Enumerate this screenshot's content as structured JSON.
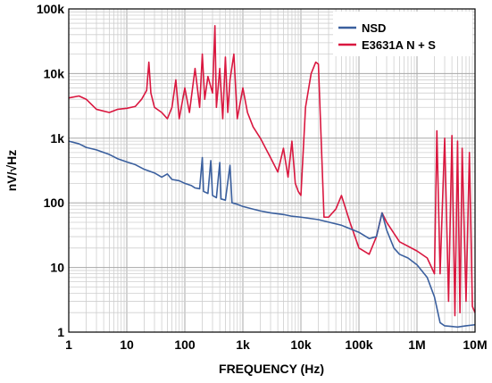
{
  "chart_data": {
    "type": "line",
    "xlabel": "FREQUENCY (Hz)",
    "ylabel": "nV/√Hz",
    "xscale": "log",
    "yscale": "log",
    "xlim": [
      1,
      10000000
    ],
    "ylim": [
      1,
      100000
    ],
    "grid": true,
    "legend_position": "top-right",
    "x_ticks": [
      {
        "value": 1,
        "label": "1"
      },
      {
        "value": 10,
        "label": "10"
      },
      {
        "value": 100,
        "label": "100"
      },
      {
        "value": 1000,
        "label": "1k"
      },
      {
        "value": 10000,
        "label": "10k"
      },
      {
        "value": 100000,
        "label": "100k"
      },
      {
        "value": 1000000,
        "label": "1M"
      },
      {
        "value": 10000000,
        "label": "10M"
      }
    ],
    "y_ticks": [
      {
        "value": 1,
        "label": "1"
      },
      {
        "value": 10,
        "label": "10"
      },
      {
        "value": 100,
        "label": "100"
      },
      {
        "value": 1000,
        "label": "1k"
      },
      {
        "value": 10000,
        "label": "10k"
      },
      {
        "value": 100000,
        "label": "100k"
      }
    ],
    "series": [
      {
        "name": "NSD",
        "color": "#3a5f9e",
        "points": [
          [
            1,
            900
          ],
          [
            1.5,
            820
          ],
          [
            2,
            720
          ],
          [
            3,
            660
          ],
          [
            5,
            560
          ],
          [
            7,
            480
          ],
          [
            10,
            430
          ],
          [
            14,
            390
          ],
          [
            20,
            330
          ],
          [
            30,
            290
          ],
          [
            40,
            250
          ],
          [
            50,
            280
          ],
          [
            60,
            230
          ],
          [
            80,
            220
          ],
          [
            100,
            200
          ],
          [
            130,
            185
          ],
          [
            150,
            170
          ],
          [
            180,
            165
          ],
          [
            200,
            500
          ],
          [
            210,
            150
          ],
          [
            250,
            140
          ],
          [
            280,
            450
          ],
          [
            300,
            130
          ],
          [
            350,
            120
          ],
          [
            400,
            420
          ],
          [
            420,
            115
          ],
          [
            500,
            110
          ],
          [
            600,
            380
          ],
          [
            650,
            100
          ],
          [
            800,
            95
          ],
          [
            1000,
            88
          ],
          [
            1500,
            80
          ],
          [
            2000,
            75
          ],
          [
            3000,
            70
          ],
          [
            5000,
            66
          ],
          [
            7000,
            62
          ],
          [
            10000,
            60
          ],
          [
            20000,
            55
          ],
          [
            50000,
            45
          ],
          [
            100000,
            35
          ],
          [
            150000,
            28
          ],
          [
            200000,
            30
          ],
          [
            250000,
            70
          ],
          [
            300000,
            38
          ],
          [
            400000,
            20
          ],
          [
            500000,
            16
          ],
          [
            700000,
            14
          ],
          [
            1000000,
            11
          ],
          [
            1500000,
            7
          ],
          [
            2000000,
            3.5
          ],
          [
            2500000,
            1.4
          ],
          [
            3000000,
            1.25
          ],
          [
            5000000,
            1.2
          ],
          [
            7000000,
            1.25
          ],
          [
            10000000,
            1.3
          ]
        ]
      },
      {
        "name": "E3631A N + S",
        "color": "#d9173f",
        "points": [
          [
            1,
            4200
          ],
          [
            1.5,
            4500
          ],
          [
            2,
            4000
          ],
          [
            3,
            2800
          ],
          [
            5,
            2500
          ],
          [
            7,
            2800
          ],
          [
            10,
            2900
          ],
          [
            14,
            3100
          ],
          [
            18,
            4000
          ],
          [
            22,
            5500
          ],
          [
            24,
            15000
          ],
          [
            26,
            5000
          ],
          [
            30,
            3000
          ],
          [
            40,
            2500
          ],
          [
            50,
            2000
          ],
          [
            60,
            3000
          ],
          [
            70,
            8000
          ],
          [
            80,
            2000
          ],
          [
            100,
            6000
          ],
          [
            120,
            2500
          ],
          [
            150,
            12000
          ],
          [
            180,
            3000
          ],
          [
            200,
            20000
          ],
          [
            220,
            4000
          ],
          [
            250,
            9000
          ],
          [
            300,
            5000
          ],
          [
            330,
            55000
          ],
          [
            350,
            3000
          ],
          [
            400,
            12000
          ],
          [
            450,
            2000
          ],
          [
            500,
            18000
          ],
          [
            550,
            2500
          ],
          [
            600,
            8000
          ],
          [
            700,
            20000
          ],
          [
            800,
            2000
          ],
          [
            1000,
            6000
          ],
          [
            1200,
            2500
          ],
          [
            1500,
            1500
          ],
          [
            2000,
            1000
          ],
          [
            3000,
            500
          ],
          [
            4000,
            300
          ],
          [
            5000,
            700
          ],
          [
            6000,
            250
          ],
          [
            7000,
            900
          ],
          [
            8000,
            200
          ],
          [
            9000,
            150
          ],
          [
            10000,
            130
          ],
          [
            12000,
            3000
          ],
          [
            15000,
            10000
          ],
          [
            18000,
            15000
          ],
          [
            20000,
            14000
          ],
          [
            25000,
            60
          ],
          [
            30000,
            60
          ],
          [
            40000,
            80
          ],
          [
            50000,
            130
          ],
          [
            70000,
            50
          ],
          [
            100000,
            20
          ],
          [
            150000,
            16
          ],
          [
            200000,
            30
          ],
          [
            250000,
            70
          ],
          [
            300000,
            50
          ],
          [
            500000,
            25
          ],
          [
            1000000,
            18
          ],
          [
            1500000,
            14
          ],
          [
            2000000,
            8
          ],
          [
            2200000,
            1300
          ],
          [
            2500000,
            8
          ],
          [
            3000000,
            1000
          ],
          [
            3500000,
            3
          ],
          [
            4000000,
            1100
          ],
          [
            4500000,
            1.8
          ],
          [
            5000000,
            900
          ],
          [
            5500000,
            2
          ],
          [
            6000000,
            700
          ],
          [
            7000000,
            3
          ],
          [
            8000000,
            600
          ],
          [
            9000000,
            2.5
          ],
          [
            10000000,
            2
          ]
        ]
      }
    ]
  }
}
